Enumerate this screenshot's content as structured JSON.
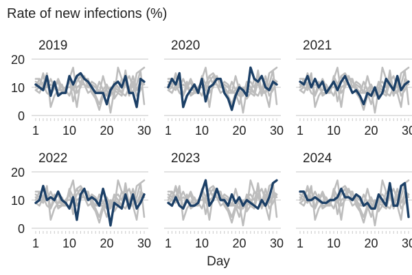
{
  "chart_data": {
    "type": "line",
    "title": "Rate of new infections (%)",
    "xlabel": "Day",
    "ylabel": "",
    "xlim": [
      1,
      30
    ],
    "ylim": [
      0,
      20
    ],
    "xticks": [
      1,
      10,
      20,
      30
    ],
    "yticks": [
      0,
      10,
      20
    ],
    "grid": "horizontal",
    "layout": "facets, 3 columns x 2 rows",
    "colors": {
      "highlight": "#1b3f66",
      "background_series": "#bdbdbd",
      "grid": "#d9d9d9"
    },
    "days": [
      1,
      2,
      3,
      4,
      5,
      6,
      7,
      8,
      9,
      10,
      11,
      12,
      13,
      14,
      15,
      16,
      17,
      18,
      19,
      20,
      21,
      22,
      23,
      24,
      25,
      26,
      27,
      28,
      29,
      30
    ],
    "panels": [
      {
        "name": "2019",
        "values": [
          11,
          10,
          9,
          14,
          7,
          12,
          7,
          8,
          8,
          14,
          11,
          14,
          15,
          13,
          12,
          10,
          8,
          8,
          8,
          4,
          9,
          11,
          12,
          10,
          14,
          8,
          8,
          3,
          13,
          12
        ]
      },
      {
        "name": "2020",
        "values": [
          10,
          13,
          11,
          15,
          3,
          7,
          9,
          11,
          8,
          13,
          5,
          10,
          11,
          13,
          13,
          8,
          6,
          2,
          7,
          10,
          9,
          7,
          17,
          13,
          12,
          14,
          10,
          9,
          12,
          11
        ]
      },
      {
        "name": "2021",
        "values": [
          12,
          11,
          14,
          10,
          13,
          10,
          12,
          8,
          10,
          12,
          9,
          12,
          14,
          11,
          8,
          9,
          7,
          4,
          8,
          7,
          10,
          6,
          8,
          13,
          11,
          9,
          14,
          9,
          11,
          12
        ]
      },
      {
        "name": "2022",
        "values": [
          9,
          10,
          15,
          10,
          11,
          10,
          13,
          10,
          9,
          7,
          11,
          3,
          12,
          14,
          10,
          11,
          10,
          8,
          14,
          9,
          1,
          9,
          8,
          7,
          12,
          7,
          12,
          7,
          9,
          12
        ]
      },
      {
        "name": "2023",
        "values": [
          9,
          8,
          11,
          8,
          7,
          10,
          8,
          8,
          9,
          13,
          17,
          8,
          10,
          14,
          10,
          10,
          8,
          12,
          9,
          11,
          8,
          10,
          9,
          8,
          7,
          10,
          8,
          11,
          16,
          17
        ]
      },
      {
        "name": "2024",
        "values": [
          13,
          13,
          10,
          10,
          11,
          10,
          9,
          9,
          10,
          10,
          11,
          14,
          11,
          11,
          10,
          12,
          11,
          8,
          9,
          7,
          7,
          12,
          10,
          8,
          16,
          8,
          8,
          15,
          16,
          4
        ]
      }
    ]
  }
}
